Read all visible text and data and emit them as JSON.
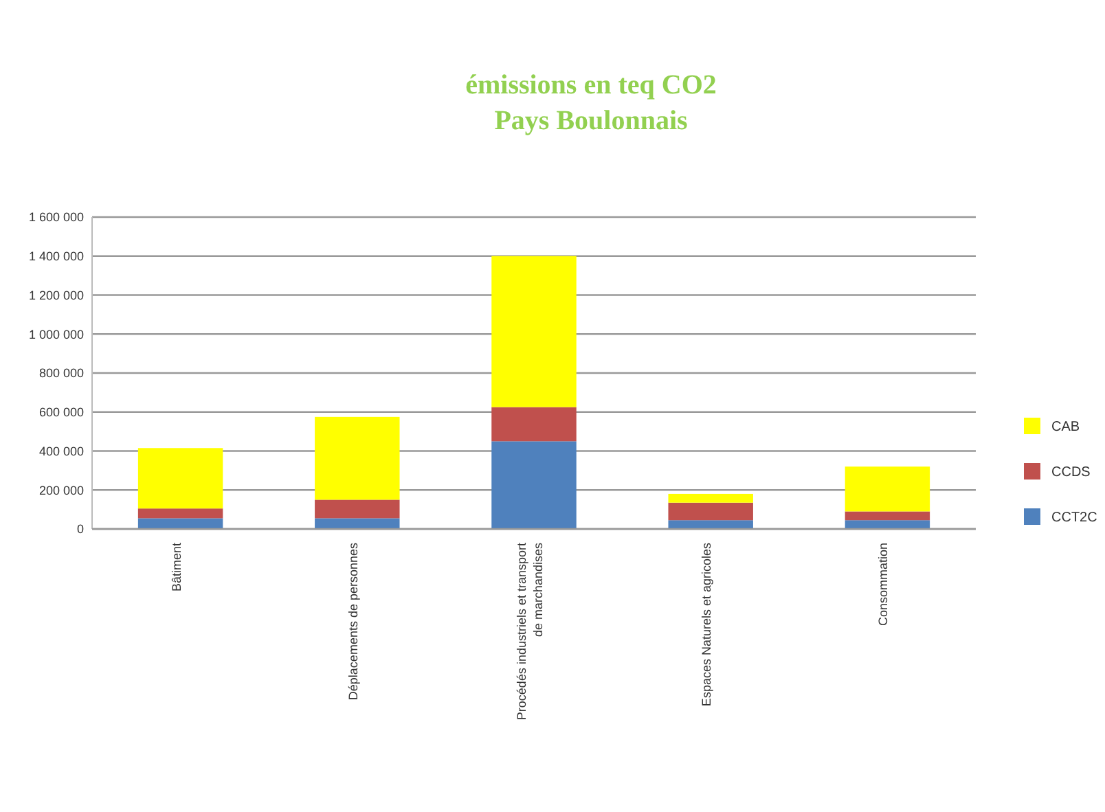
{
  "chart_data": {
    "type": "bar",
    "title": "émissions en teq CO2\nPays Boulonnais",
    "stacked": true,
    "categories": [
      "Bâtiment",
      "Déplacements de personnes",
      "Procédés industriels et transport de marchandises",
      "Espaces Naturels et agricoles",
      "Consommation"
    ],
    "series": [
      {
        "name": "CCT2C",
        "color": "#4f81bd",
        "values": [
          55000,
          55000,
          450000,
          45000,
          45000
        ]
      },
      {
        "name": "CCDS",
        "color": "#c0504d",
        "values": [
          50000,
          95000,
          175000,
          90000,
          45000
        ]
      },
      {
        "name": "CAB",
        "color": "#ffff00",
        "values": [
          310000,
          425000,
          775000,
          45000,
          230000
        ]
      }
    ],
    "ylim": [
      0,
      1600000
    ],
    "yticks": [
      {
        "value": 0,
        "label": "0"
      },
      {
        "value": 200000,
        "label": "200 000"
      },
      {
        "value": 400000,
        "label": "400 000"
      },
      {
        "value": 600000,
        "label": "600 000"
      },
      {
        "value": 800000,
        "label": "800 000"
      },
      {
        "value": 1000000,
        "label": "1 000 000"
      },
      {
        "value": 1200000,
        "label": "1 200 000"
      },
      {
        "value": 1400000,
        "label": "1 400 000"
      },
      {
        "value": 1600000,
        "label": "1 600 000"
      }
    ],
    "grid": "y",
    "legend": "right"
  }
}
